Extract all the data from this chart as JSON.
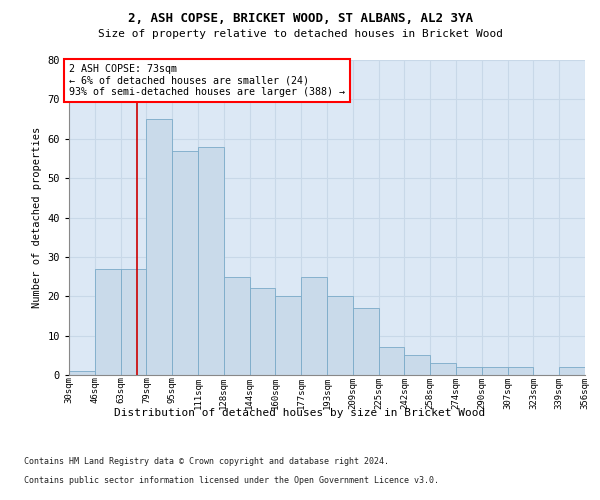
{
  "title_line1": "2, ASH COPSE, BRICKET WOOD, ST ALBANS, AL2 3YA",
  "title_line2": "Size of property relative to detached houses in Bricket Wood",
  "xlabel": "Distribution of detached houses by size in Bricket Wood",
  "ylabel": "Number of detached properties",
  "bins": [
    "30sqm",
    "46sqm",
    "63sqm",
    "79sqm",
    "95sqm",
    "111sqm",
    "128sqm",
    "144sqm",
    "160sqm",
    "177sqm",
    "193sqm",
    "209sqm",
    "225sqm",
    "242sqm",
    "258sqm",
    "274sqm",
    "290sqm",
    "307sqm",
    "323sqm",
    "339sqm",
    "356sqm"
  ],
  "values": [
    1,
    27,
    27,
    65,
    57,
    58,
    25,
    22,
    20,
    25,
    20,
    17,
    7,
    5,
    3,
    2,
    2,
    2,
    0,
    2
  ],
  "bar_color": "#c9daea",
  "bar_edge_color": "#7aaac8",
  "grid_color": "#c8d8e8",
  "background_color": "#dce8f5",
  "annotation_text": "2 ASH COPSE: 73sqm\n← 6% of detached houses are smaller (24)\n93% of semi-detached houses are larger (388) →",
  "red_line_color": "#cc0000",
  "ylim": [
    0,
    80
  ],
  "yticks": [
    0,
    10,
    20,
    30,
    40,
    50,
    60,
    70,
    80
  ],
  "footnote1": "Contains HM Land Registry data © Crown copyright and database right 2024.",
  "footnote2": "Contains public sector information licensed under the Open Government Licence v3.0."
}
